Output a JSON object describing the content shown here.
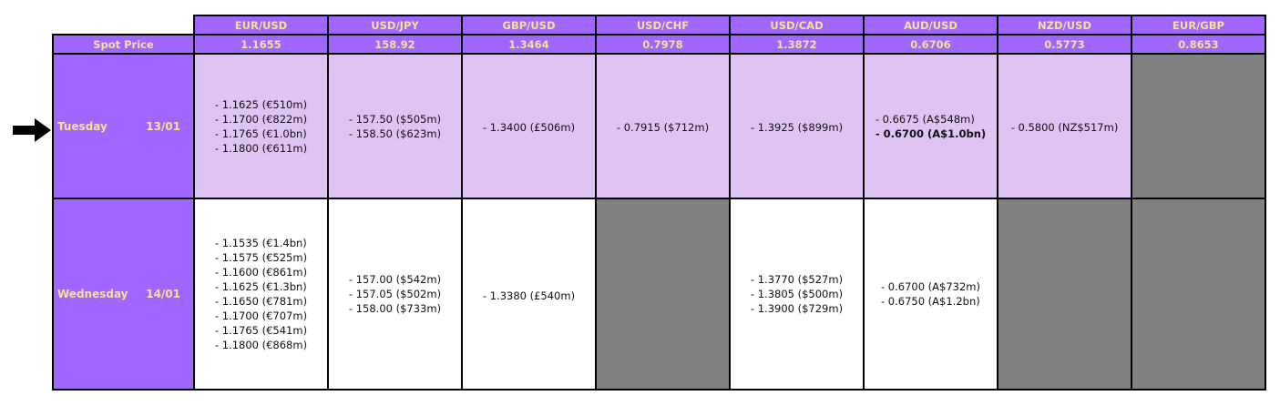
{
  "pairs": [
    "EUR/USD",
    "USD/JPY",
    "GBP/USD",
    "USD/CHF",
    "USD/CAD",
    "AUD/USD",
    "NZD/USD",
    "EUR/GBP"
  ],
  "spot": {
    "label": "Spot Price",
    "values": [
      "1.1655",
      "158.92",
      "1.3464",
      "0.7978",
      "1.3872",
      "0.6706",
      "0.5773",
      "0.8653"
    ]
  },
  "highlight_arrow": "arrow-right-icon",
  "colors": {
    "header": "#a066ff",
    "header_text": "#f4e38e",
    "highlight_row": "#dfc3f3",
    "empty_cell": "#808080"
  },
  "rows": [
    {
      "day": "Tuesday",
      "date": "13/01",
      "highlighted": true,
      "cells": [
        [
          {
            "t": "- 1.1625 (€510m)"
          },
          {
            "t": "- 1.1700 (€822m)"
          },
          {
            "t": "- 1.1765 (€1.0bn)"
          },
          {
            "t": "- 1.1800 (€611m)"
          }
        ],
        [
          {
            "t": "- 157.50 ($505m)"
          },
          {
            "t": "- 158.50 ($623m)"
          }
        ],
        [
          {
            "t": "- 1.3400 (£506m)"
          }
        ],
        [
          {
            "t": "- 0.7915 ($712m)"
          }
        ],
        [
          {
            "t": "- 1.3925 ($899m)"
          }
        ],
        [
          {
            "t": "- 0.6675 (A$548m)"
          },
          {
            "t": "- 0.6700 (A$1.0bn)",
            "bold": true
          }
        ],
        [
          {
            "t": "- 0.5800 (NZ$517m)"
          }
        ],
        null
      ]
    },
    {
      "day": "Wednesday",
      "date": "14/01",
      "highlighted": false,
      "cells": [
        [
          {
            "t": "- 1.1535 (€1.4bn)"
          },
          {
            "t": "- 1.1575 (€525m)"
          },
          {
            "t": "- 1.1600 (€861m)"
          },
          {
            "t": "- 1.1625 (€1.3bn)"
          },
          {
            "t": "- 1.1650 (€781m)"
          },
          {
            "t": "- 1.1700 (€707m)"
          },
          {
            "t": "- 1.1765 (€541m)"
          },
          {
            "t": "- 1.1800 (€868m)"
          }
        ],
        [
          {
            "t": "- 157.00 ($542m)"
          },
          {
            "t": "- 157.05 ($502m)"
          },
          {
            "t": "- 158.00 ($733m)"
          }
        ],
        [
          {
            "t": "- 1.3380 (£540m)"
          }
        ],
        null,
        [
          {
            "t": "- 1.3770 ($527m)"
          },
          {
            "t": "- 1.3805 ($500m)"
          },
          {
            "t": "- 1.3900 ($729m)"
          }
        ],
        [
          {
            "t": "- 0.6700 (A$732m)"
          },
          {
            "t": "- 0.6750 (A$1.2bn)"
          }
        ],
        null,
        null
      ]
    }
  ]
}
